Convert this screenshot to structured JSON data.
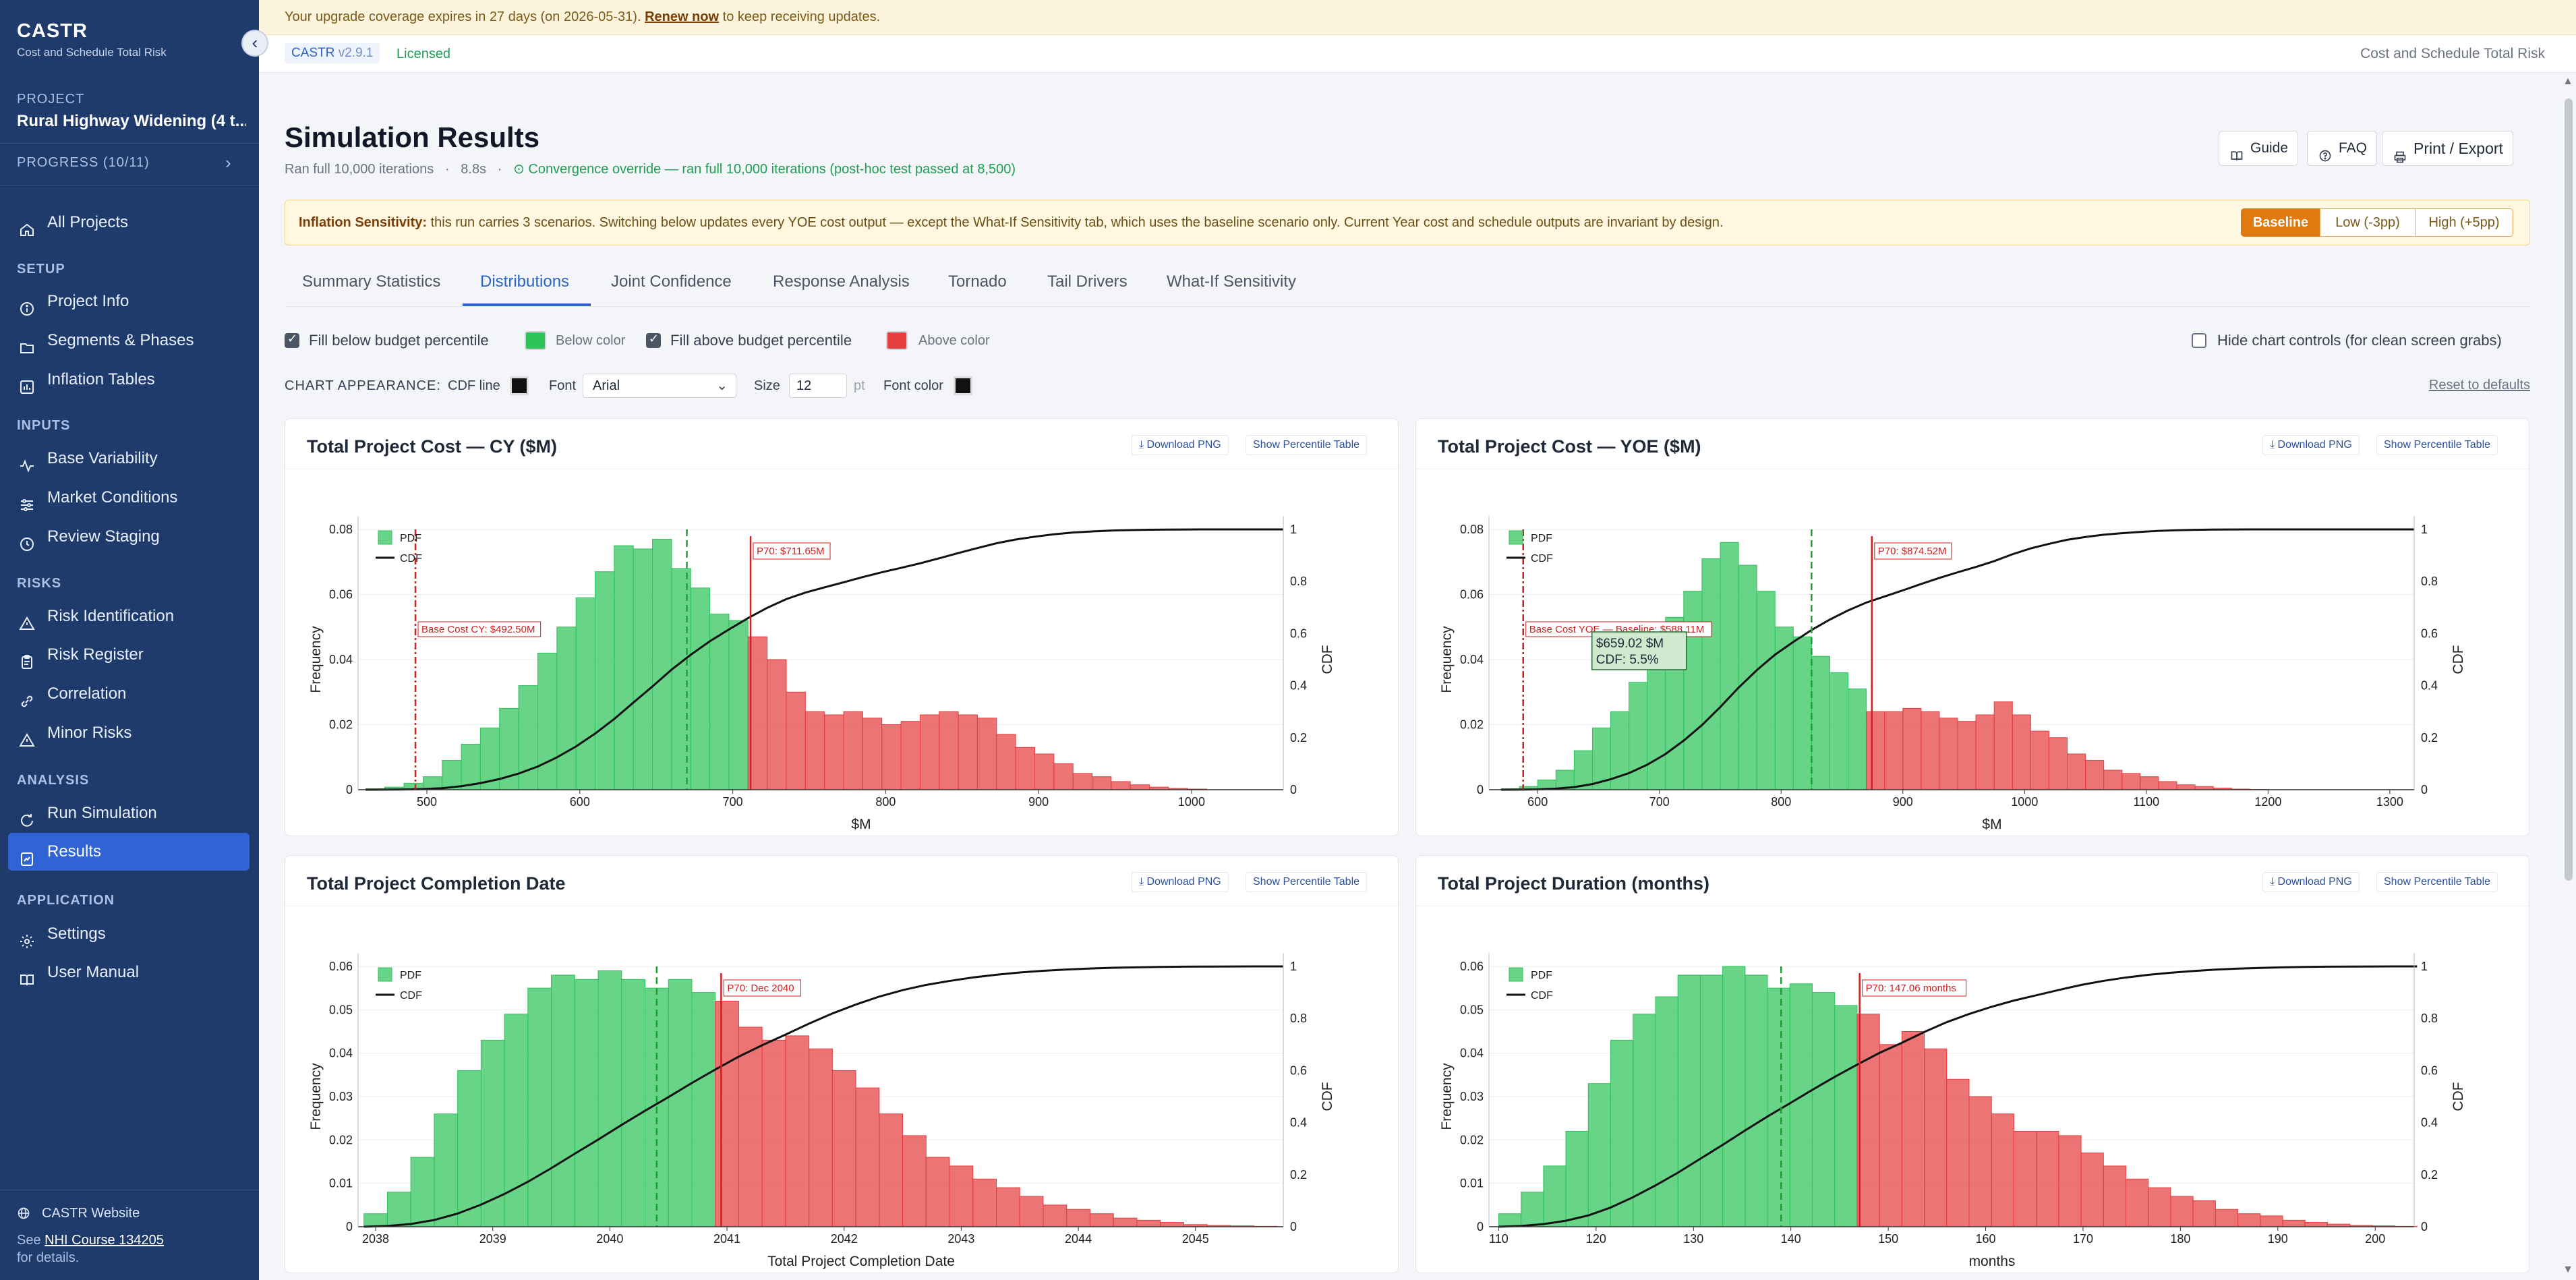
{
  "app": {
    "name": "CASTR",
    "subtitle": "Cost and Schedule Total Risk",
    "collapse_glyph": "‹"
  },
  "project": {
    "label": "PROJECT",
    "name": "Rural Highway Widening (4 t...",
    "progress": "PROGRESS (10/11)"
  },
  "sidebar": {
    "all_projects": "All Projects",
    "sections": [
      {
        "title": "SETUP",
        "items": [
          {
            "label": "Project Info",
            "icon": "info-icon"
          },
          {
            "label": "Segments & Phases",
            "icon": "folder-icon"
          },
          {
            "label": "Inflation Tables",
            "icon": "bar-chart-icon"
          }
        ]
      },
      {
        "title": "INPUTS",
        "items": [
          {
            "label": "Base Variability",
            "icon": "activity-icon"
          },
          {
            "label": "Market Conditions",
            "icon": "sliders-icon"
          },
          {
            "label": "Review Staging",
            "icon": "clock-icon"
          }
        ]
      },
      {
        "title": "RISKS",
        "items": [
          {
            "label": "Risk Identification",
            "icon": "warning-icon"
          },
          {
            "label": "Risk Register",
            "icon": "clipboard-icon"
          },
          {
            "label": "Correlation",
            "icon": "link-icon"
          },
          {
            "label": "Minor Risks",
            "icon": "warning-icon"
          }
        ]
      },
      {
        "title": "ANALYSIS",
        "items": [
          {
            "label": "Run Simulation",
            "icon": "refresh-icon"
          },
          {
            "label": "Results",
            "icon": "results-icon",
            "active": true
          }
        ]
      },
      {
        "title": "APPLICATION",
        "items": [
          {
            "label": "Settings",
            "icon": "gear-icon"
          },
          {
            "label": "User Manual",
            "icon": "book-icon"
          }
        ]
      }
    ],
    "footer": {
      "website": "CASTR Website",
      "see_prefix": "See ",
      "course": "NHI Course 134205",
      "see_suffix": "for details."
    }
  },
  "banner": {
    "text_before": "Your upgrade coverage expires in 27 days (on 2026-05-31). ",
    "renew": "Renew now",
    "text_after": " to keep receiving updates."
  },
  "topbar": {
    "brand": "CASTR",
    "version": "v2.9.1",
    "license": "Licensed",
    "right_text": "Cost and Schedule Total Risk"
  },
  "header": {
    "title": "Simulation Results",
    "iterations": "Ran full 10,000 iterations",
    "dot1": "·",
    "time": "8.8s",
    "dot2": "·",
    "convergence": "Convergence override — ran full 10,000 iterations (post-hoc test passed at 8,500)",
    "buttons": {
      "guide": "Guide",
      "faq": "FAQ",
      "print": "Print / Export"
    }
  },
  "inflation": {
    "bold": "Inflation Sensitivity:",
    "text": " this run carries 3 scenarios. Switching below updates every YOE cost output — except the What-If Sensitivity tab, which uses the baseline scenario only. Current Year cost and schedule outputs are invariant by design.",
    "options": [
      "Baseline",
      "Low (-3pp)",
      "High (+5pp)"
    ],
    "selected": "Baseline"
  },
  "tabs": [
    "Summary Statistics",
    "Distributions",
    "Joint Confidence",
    "Response Analysis",
    "Tornado",
    "Tail Drivers",
    "What-If Sensitivity"
  ],
  "active_tab": "Distributions",
  "controls": {
    "fill_below": "Fill below budget percentile",
    "fill_below_checked": true,
    "below_color_label": "Below color",
    "below_color": "#2ec45a",
    "fill_above": "Fill above budget percentile",
    "fill_above_checked": true,
    "above_color_label": "Above color",
    "above_color": "#e53e3e",
    "hide_controls": "Hide chart controls (for clean screen grabs)",
    "hide_checked": false,
    "appearance_label": "CHART APPEARANCE:",
    "cdf_line_label": "CDF line",
    "cdf_line_color": "#111111",
    "font_label": "Font",
    "font_value": "Arial",
    "size_label": "Size",
    "size_value": "12",
    "size_unit": "pt",
    "font_color_label": "Font color",
    "font_color": "#111111",
    "reset": "Reset to defaults"
  },
  "card_buttons": {
    "download": "Download PNG",
    "percentile_table": "Show Percentile Table"
  },
  "chart_data": [
    {
      "type": "bar",
      "title": "Total Project Cost — CY ($M)",
      "xlabel": "$M",
      "ylabel": "Frequency",
      "y2label": "CDF",
      "xlim": [
        455,
        1060
      ],
      "ylim": [
        0,
        0.08
      ],
      "y2lim": [
        0,
        1
      ],
      "xticks": [
        500,
        600,
        700,
        800,
        900,
        1000
      ],
      "yticks": [
        0,
        0.02,
        0.04,
        0.06,
        0.08
      ],
      "y2ticks": [
        0,
        0.2,
        0.4,
        0.6,
        0.8,
        1
      ],
      "bin_start": 460,
      "bin_width": 12.5,
      "values": [
        0.0003,
        0.0008,
        0.002,
        0.004,
        0.009,
        0.014,
        0.019,
        0.025,
        0.032,
        0.042,
        0.05,
        0.059,
        0.067,
        0.075,
        0.074,
        0.077,
        0.068,
        0.062,
        0.054,
        0.052,
        0.047,
        0.04,
        0.03,
        0.024,
        0.023,
        0.024,
        0.022,
        0.02,
        0.021,
        0.023,
        0.024,
        0.023,
        0.022,
        0.017,
        0.013,
        0.011,
        0.008,
        0.005,
        0.004,
        0.0025,
        0.0015,
        0.0008,
        0.0004,
        0.0002
      ],
      "split_x": 710,
      "dashed_x": 670,
      "base": {
        "x": 492.5,
        "label": "Base Cost CY: $492.50M"
      },
      "p70": {
        "x": 711.65,
        "label": "P70: $711.65M"
      },
      "legend": [
        "PDF",
        "CDF"
      ]
    },
    {
      "type": "bar",
      "title": "Total Project Cost — YOE ($M)",
      "xlabel": "$M",
      "ylabel": "Frequency",
      "y2label": "CDF",
      "xlim": [
        560,
        1320
      ],
      "ylim": [
        0,
        0.08
      ],
      "y2lim": [
        0,
        1
      ],
      "xticks": [
        600,
        700,
        800,
        900,
        1000,
        1100,
        1200,
        1300
      ],
      "yticks": [
        0,
        0.02,
        0.04,
        0.06,
        0.08
      ],
      "y2ticks": [
        0,
        0.2,
        0.4,
        0.6,
        0.8,
        1
      ],
      "bin_start": 570,
      "bin_width": 15,
      "values": [
        0.0003,
        0.001,
        0.003,
        0.006,
        0.012,
        0.019,
        0.024,
        0.033,
        0.042,
        0.053,
        0.061,
        0.071,
        0.076,
        0.069,
        0.061,
        0.05,
        0.047,
        0.041,
        0.036,
        0.031,
        0.024,
        0.024,
        0.025,
        0.024,
        0.022,
        0.021,
        0.023,
        0.027,
        0.023,
        0.018,
        0.016,
        0.011,
        0.009,
        0.006,
        0.005,
        0.004,
        0.0025,
        0.0015,
        0.001,
        0.0005,
        0.0002,
        0.0001
      ],
      "split_x": 870,
      "dashed_x": 825,
      "base": {
        "x": 588.11,
        "label": "Base Cost YOE — Baseline: $588.11M"
      },
      "p70": {
        "x": 874.52,
        "label": "P70: $874.52M"
      },
      "tooltip": {
        "x": 659.02,
        "lines": [
          "$659.02 $M",
          "CDF: 5.5%"
        ]
      },
      "legend": [
        "PDF",
        "CDF"
      ]
    },
    {
      "type": "bar",
      "title": "Total Project Completion Date",
      "xlabel": "Total Project Completion Date",
      "ylabel": "Frequency",
      "y2label": "CDF",
      "xlim": [
        2037.85,
        2045.75
      ],
      "ylim": [
        0,
        0.06
      ],
      "y2lim": [
        0,
        1
      ],
      "xticks": [
        2038,
        2039,
        2040,
        2041,
        2042,
        2043,
        2044,
        2045
      ],
      "yticks": [
        0,
        0.01,
        0.02,
        0.03,
        0.04,
        0.05,
        0.06
      ],
      "y2ticks": [
        0,
        0.2,
        0.4,
        0.6,
        0.8,
        1
      ],
      "bin_start": 2037.9,
      "bin_width": 0.2,
      "values": [
        0.003,
        0.008,
        0.016,
        0.026,
        0.036,
        0.043,
        0.049,
        0.055,
        0.058,
        0.057,
        0.059,
        0.057,
        0.055,
        0.057,
        0.054,
        0.052,
        0.046,
        0.043,
        0.044,
        0.041,
        0.036,
        0.032,
        0.026,
        0.021,
        0.016,
        0.014,
        0.011,
        0.009,
        0.007,
        0.005,
        0.004,
        0.003,
        0.002,
        0.0015,
        0.001,
        0.0005,
        0.0003,
        0.0002,
        0.0001
      ],
      "split_x": 2040.9,
      "dashed_x": 2040.4,
      "p70": {
        "x": 2040.95,
        "label": "P70: Dec 2040"
      },
      "legend": [
        "PDF",
        "CDF"
      ]
    },
    {
      "type": "bar",
      "title": "Total Project Duration (months)",
      "xlabel": "months",
      "ylabel": "Frequency",
      "y2label": "CDF",
      "xlim": [
        109,
        204
      ],
      "ylim": [
        0,
        0.06
      ],
      "y2lim": [
        0,
        1
      ],
      "xticks": [
        110,
        120,
        130,
        140,
        150,
        160,
        170,
        180,
        190,
        200
      ],
      "yticks": [
        0,
        0.01,
        0.02,
        0.03,
        0.04,
        0.05,
        0.06
      ],
      "y2ticks": [
        0,
        0.2,
        0.4,
        0.6,
        0.8,
        1
      ],
      "bin_start": 110,
      "bin_width": 2.3,
      "values": [
        0.003,
        0.008,
        0.014,
        0.022,
        0.033,
        0.043,
        0.049,
        0.053,
        0.058,
        0.058,
        0.06,
        0.058,
        0.055,
        0.056,
        0.054,
        0.051,
        0.049,
        0.042,
        0.045,
        0.041,
        0.034,
        0.03,
        0.026,
        0.022,
        0.022,
        0.021,
        0.017,
        0.014,
        0.011,
        0.009,
        0.007,
        0.006,
        0.004,
        0.003,
        0.0025,
        0.0015,
        0.001,
        0.0006,
        0.0003,
        0.0002,
        0.0001
      ],
      "split_x": 147.0,
      "dashed_x": 139,
      "p70": {
        "x": 147.06,
        "label": "P70: 147.06 months"
      },
      "legend": [
        "PDF",
        "CDF"
      ]
    }
  ]
}
